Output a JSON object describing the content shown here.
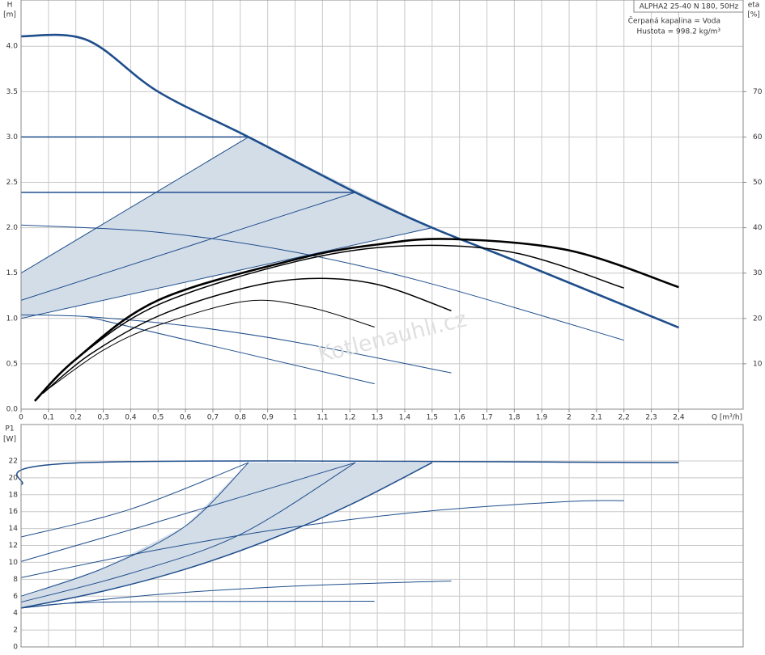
{
  "chart_data": [
    {
      "type": "line",
      "title": "ALPHA2 25-40 N 180, 50Hz",
      "annotations": [
        "Čerpaná kapalina = Voda",
        "Hustota = 998.2 kg/m³"
      ],
      "watermark": "Kotlenauhli.cz",
      "xlabel": "Q [m³/h]",
      "ylabel": "H",
      "yunit": "[m]",
      "y2label": "eta",
      "y2unit": "[%]",
      "grid": true,
      "xlim": [
        0,
        2.635
      ],
      "xticks": [
        0,
        {
          "value": 0.1,
          "label": "0,1"
        },
        {
          "value": 0.2,
          "label": "0,2"
        },
        {
          "value": 0.3,
          "label": "0,3"
        },
        {
          "value": 0.4,
          "label": "0,4"
        },
        {
          "value": 0.5,
          "label": "0,5"
        },
        {
          "value": 0.6,
          "label": "0,6"
        },
        {
          "value": 0.7,
          "label": "0,7"
        },
        {
          "value": 0.8,
          "label": "0,8"
        },
        {
          "value": 0.9,
          "label": "0,9"
        },
        1,
        {
          "value": 1.1,
          "label": "1,1"
        },
        {
          "value": 1.2,
          "label": "1,2"
        },
        {
          "value": 1.3,
          "label": "1,3"
        },
        {
          "value": 1.4,
          "label": "1,4"
        },
        {
          "value": 1.5,
          "label": "1,5"
        },
        {
          "value": 1.6,
          "label": "1,6"
        },
        {
          "value": 1.7,
          "label": "1,7"
        },
        {
          "value": 1.8,
          "label": "1,8"
        },
        {
          "value": 1.9,
          "label": "1,9"
        },
        2,
        {
          "value": 2.1,
          "label": "2,1"
        },
        {
          "value": 2.2,
          "label": "2,2"
        },
        {
          "value": 2.3,
          "label": "2,3"
        },
        {
          "value": 2.4,
          "label": "2,4"
        }
      ],
      "ylim": [
        0,
        4.51
      ],
      "yticks": [
        {
          "value": 0,
          "label": "0.0"
        },
        0.5,
        {
          "value": 1,
          "label": "1.0"
        },
        1.5,
        {
          "value": 2,
          "label": "2.0"
        },
        2.5,
        {
          "value": 3,
          "label": "3.0"
        },
        3.5,
        {
          "value": 4,
          "label": "4.0"
        }
      ],
      "y2lim": [
        0,
        90.2
      ],
      "y2ticks": [
        10,
        20,
        30,
        40,
        50,
        60,
        70
      ],
      "series": [
        {
          "style": "area",
          "color": "#d3dde8",
          "x": [
            0,
            0.83,
            1.5,
            0
          ],
          "values": [
            1.5,
            3.0,
            2.0,
            1.0
          ]
        },
        {
          "style": "thick",
          "color": "#1f4e8c",
          "x": [
            0,
            0.24,
            0.5,
            0.83,
            1.22,
            1.5,
            1.8,
            2.1,
            2.4
          ],
          "values": [
            4.11,
            4.07,
            3.5,
            3.0,
            2.39,
            2.0,
            1.64,
            1.27,
            0.9
          ]
        },
        {
          "style": "line",
          "color": "#1f4e8c",
          "x": [
            0,
            0.83
          ],
          "values": [
            3.0,
            3.0
          ]
        },
        {
          "style": "line",
          "color": "#1f4e8c",
          "x": [
            0,
            1.22
          ],
          "values": [
            2.39,
            2.39
          ]
        },
        {
          "style": "thin",
          "color": "#1f4e8c",
          "x": [
            0,
            0.83
          ],
          "values": [
            1.5,
            3.0
          ]
        },
        {
          "style": "thin",
          "color": "#1f4e8c",
          "x": [
            0,
            1.22
          ],
          "values": [
            1.2,
            2.39
          ]
        },
        {
          "style": "thin",
          "color": "#1f4e8c",
          "x": [
            0,
            1.5
          ],
          "values": [
            1.0,
            2.0
          ]
        },
        {
          "style": "thin",
          "color": "#1f4e8c",
          "x": [
            0,
            0.5,
            1.0,
            1.5,
            2.2
          ],
          "values": [
            2.03,
            1.95,
            1.73,
            1.38,
            0.76
          ]
        },
        {
          "style": "thin",
          "color": "#1f4e8c",
          "x": [
            0,
            0.24,
            0.6,
            1.0,
            1.57
          ],
          "values": [
            1.04,
            1.02,
            0.92,
            0.74,
            0.4
          ]
        },
        {
          "style": "thin",
          "color": "#1f4e8c",
          "x": [
            0.24,
            1.29
          ],
          "values": [
            1.02,
            0.28
          ]
        },
        {
          "style": "thick",
          "color": "#000000",
          "axis": "y2",
          "x": [
            0.05,
            0.2,
            0.5,
            1.0,
            1.3,
            1.57,
            2.0,
            2.4
          ],
          "values": [
            1.8,
            11,
            24,
            33,
            36.3,
            37.5,
            35,
            26.9
          ]
        },
        {
          "style": "line",
          "color": "#000000",
          "axis": "y2",
          "x": [
            0.06,
            0.2,
            0.5,
            1.0,
            1.4,
            1.8,
            2.2
          ],
          "values": [
            2.5,
            11,
            23,
            32.5,
            36,
            34.5,
            26.7
          ]
        },
        {
          "style": "line",
          "color": "#000000",
          "axis": "y2",
          "x": [
            0.08,
            0.25,
            0.5,
            0.8,
            1.05,
            1.3,
            1.57
          ],
          "values": [
            3.5,
            12,
            20.5,
            26.5,
            28.8,
            27.5,
            21.7
          ]
        },
        {
          "style": "thin",
          "color": "#000000",
          "axis": "y2",
          "x": [
            0.1,
            0.3,
            0.5,
            0.82,
            1.05,
            1.29
          ],
          "values": [
            4.5,
            13,
            18.5,
            23.8,
            22.5,
            18.1
          ]
        }
      ]
    },
    {
      "type": "line",
      "ylabel": "P1",
      "yunit": "[W]",
      "grid": true,
      "xlim": [
        0,
        2.635
      ],
      "ylim": [
        0,
        26.3
      ],
      "yticks": [
        0,
        2,
        4,
        6,
        8,
        10,
        12,
        14,
        16,
        18,
        20,
        22
      ],
      "series": [
        {
          "style": "area",
          "color": "#d3dde8",
          "x": [
            0,
            0.3,
            0.6,
            0.83,
            1.5,
            1.2,
            0.9,
            0.6,
            0.3,
            0
          ],
          "values": [
            6,
            9.3,
            14.3,
            21.8,
            21.8,
            16.8,
            12.6,
            9.2,
            6.6,
            4.6
          ]
        },
        {
          "style": "line",
          "color": "#1f4e8c",
          "x": [
            0,
            0.24,
            2.4
          ],
          "values": [
            19.2,
            21.8,
            21.8
          ]
        },
        {
          "style": "thin",
          "color": "#1f4e8c",
          "x": [
            0,
            0.4,
            0.83
          ],
          "values": [
            13,
            16.3,
            21.8
          ]
        },
        {
          "style": "thin",
          "color": "#1f4e8c",
          "x": [
            0,
            0.5,
            1.22
          ],
          "values": [
            10.1,
            14.8,
            21.8
          ]
        },
        {
          "style": "thin",
          "color": "#1f4e8c",
          "x": [
            0,
            0.3,
            0.6,
            0.83
          ],
          "values": [
            6,
            9.3,
            14.3,
            21.8
          ]
        },
        {
          "style": "thin",
          "color": "#1f4e8c",
          "x": [
            0,
            0.4,
            0.8,
            1.22
          ],
          "values": [
            5.3,
            8.7,
            13.3,
            21.8
          ]
        },
        {
          "style": "line",
          "color": "#1f4e8c",
          "x": [
            0,
            0.3,
            0.6,
            0.9,
            1.2,
            1.5
          ],
          "values": [
            4.6,
            6.6,
            9.2,
            12.6,
            16.8,
            21.8
          ]
        },
        {
          "style": "thin",
          "color": "#1f4e8c",
          "x": [
            0,
            0.5,
            1.0,
            1.5,
            2.0,
            2.2
          ],
          "values": [
            8.2,
            11.5,
            14.2,
            16.1,
            17.2,
            17.3
          ]
        },
        {
          "style": "thin",
          "color": "#1f4e8c",
          "x": [
            0,
            0.5,
            1.0,
            1.57
          ],
          "values": [
            4.6,
            6.2,
            7.2,
            7.8
          ]
        },
        {
          "style": "thin",
          "color": "#1f4e8c",
          "x": [
            0,
            0.3,
            1.29
          ],
          "values": [
            4.6,
            5.3,
            5.4
          ]
        }
      ]
    }
  ]
}
